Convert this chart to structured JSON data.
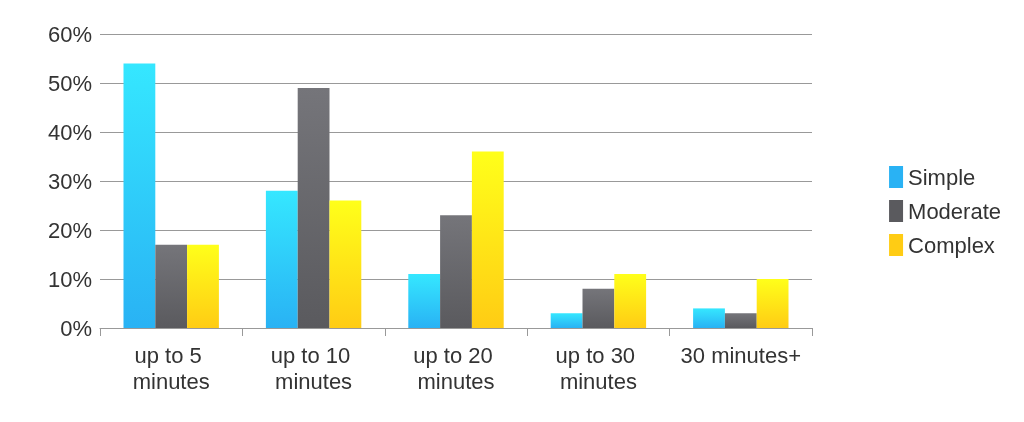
{
  "chart_data": {
    "type": "bar",
    "categories": [
      "up to 5 minutes",
      "up to 10 minutes",
      "up to 20 minutes",
      "up to 30 minutes",
      "30 minutes+"
    ],
    "series": [
      {
        "name": "Simple",
        "color": "#29b2f4",
        "values": [
          54,
          28,
          11,
          3,
          4
        ]
      },
      {
        "name": "Moderate",
        "color": "#5a5a5e",
        "values": [
          17,
          49,
          23,
          8,
          3
        ]
      },
      {
        "name": "Complex",
        "color": "#ffcc14",
        "values": [
          17,
          26,
          36,
          11,
          10
        ]
      }
    ],
    "ylim": [
      0,
      60
    ],
    "yticks": [
      {
        "value": 0,
        "label": "0%"
      },
      {
        "value": 10,
        "label": "10%"
      },
      {
        "value": 20,
        "label": "20%"
      },
      {
        "value": 30,
        "label": "30%"
      },
      {
        "value": 40,
        "label": "40%"
      },
      {
        "value": 50,
        "label": "50%"
      },
      {
        "value": 60,
        "label": "60%"
      }
    ],
    "grid": "y",
    "legend": "right"
  }
}
